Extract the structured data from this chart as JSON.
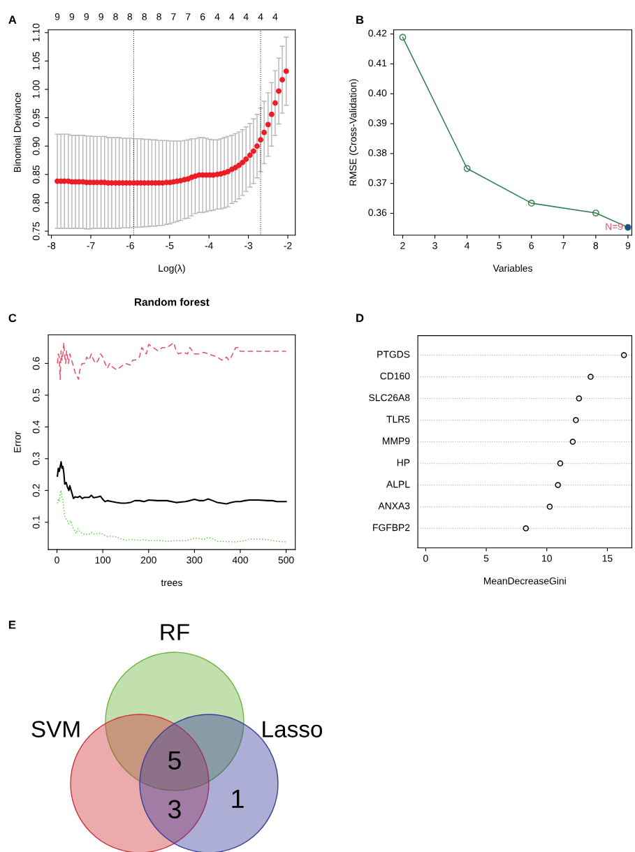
{
  "chart_data": [
    {
      "type": "scatter",
      "xlabel": "Log(λ)",
      "ylabel": "Binomial Deviance",
      "annotations": [
        "A",
        "9",
        "9",
        "9",
        "9",
        "8",
        "8",
        "8",
        "8",
        "7",
        "7",
        "6",
        "4",
        "4",
        "4",
        "4",
        "4"
      ],
      "marker": "circle",
      "xlim": [
        -8.08,
        -1.81
      ],
      "ylim": [
        0.743,
        1.105
      ],
      "xticks": [
        -8,
        -7,
        -6,
        -5,
        -4,
        -3,
        -2
      ],
      "yticks": [
        0.75,
        {
          "value": 0.8,
          "label": "0.80"
        },
        0.85,
        {
          "value": 0.9,
          "label": "0.90"
        },
        0.95,
        {
          "value": 1.0,
          "label": "1.00"
        },
        1.05,
        {
          "value": 1.1,
          "label": "1.10"
        }
      ],
      "ref_lines": [
        {
          "axis": "x",
          "value": -5.91,
          "line_style": "dotted",
          "color": "#333333"
        },
        {
          "axis": "x",
          "value": -2.69,
          "line_style": "dotted",
          "color": "#333333"
        }
      ],
      "x": [
        -7.85,
        -7.76,
        -7.67,
        -7.57,
        -7.48,
        -7.39,
        -7.3,
        -7.2,
        -7.11,
        -7.02,
        -6.93,
        -6.84,
        -6.74,
        -6.65,
        -6.56,
        -6.47,
        -6.37,
        -6.28,
        -6.19,
        -6.1,
        -6.01,
        -5.91,
        -5.82,
        -5.73,
        -5.64,
        -5.54,
        -5.45,
        -5.36,
        -5.27,
        -5.18,
        -5.08,
        -4.99,
        -4.9,
        -4.81,
        -4.72,
        -4.62,
        -4.53,
        -4.44,
        -4.35,
        -4.25,
        -4.16,
        -4.07,
        -3.98,
        -3.89,
        -3.79,
        -3.7,
        -3.61,
        -3.52,
        -3.42,
        -3.33,
        -3.24,
        -3.15,
        -3.06,
        -2.96,
        -2.87,
        -2.78,
        -2.69,
        -2.6,
        -2.5,
        -2.41,
        -2.32,
        -2.23,
        -2.14,
        -2.04
      ],
      "series": [
        {
          "color": "#ee1c25",
          "values": [
            0.838,
            0.838,
            0.838,
            0.838,
            0.837,
            0.837,
            0.837,
            0.837,
            0.836,
            0.836,
            0.836,
            0.836,
            0.836,
            0.836,
            0.835,
            0.835,
            0.835,
            0.835,
            0.835,
            0.835,
            0.835,
            0.835,
            0.835,
            0.835,
            0.835,
            0.835,
            0.835,
            0.835,
            0.835,
            0.835,
            0.836,
            0.836,
            0.837,
            0.838,
            0.839,
            0.841,
            0.842,
            0.845,
            0.847,
            0.849,
            0.849,
            0.849,
            0.849,
            0.849,
            0.85,
            0.851,
            0.853,
            0.855,
            0.859,
            0.862,
            0.866,
            0.871,
            0.877,
            0.884,
            0.891,
            0.9,
            0.911,
            0.924,
            0.938,
            0.956,
            0.976,
            0.997,
            1.017,
            1.032
          ],
          "errors": [
            0.083,
            0.083,
            0.083,
            0.083,
            0.082,
            0.082,
            0.082,
            0.082,
            0.082,
            0.082,
            0.081,
            0.081,
            0.081,
            0.081,
            0.08,
            0.08,
            0.08,
            0.08,
            0.079,
            0.079,
            0.079,
            0.078,
            0.078,
            0.078,
            0.077,
            0.077,
            0.076,
            0.076,
            0.075,
            0.075,
            0.074,
            0.073,
            0.072,
            0.071,
            0.07,
            0.069,
            0.069,
            0.068,
            0.066,
            0.066,
            0.066,
            0.065,
            0.063,
            0.062,
            0.061,
            0.062,
            0.062,
            0.062,
            0.06,
            0.06,
            0.059,
            0.058,
            0.057,
            0.056,
            0.057,
            0.056,
            0.056,
            0.055,
            0.056,
            0.056,
            0.057,
            0.058,
            0.059,
            0.06
          ]
        }
      ]
    },
    {
      "type": "line",
      "xlabel": "Variables",
      "ylabel": "RMSE (Cross-Validation)",
      "marker": "circle",
      "annotations": [
        "B",
        {
          "text": "N=9",
          "x": 9,
          "y": 0.3553
        }
      ],
      "xlim": [
        1.72,
        9.12
      ],
      "ylim": [
        0.3527,
        0.4214
      ],
      "xticks": [
        2,
        3,
        4,
        5,
        6,
        7,
        8,
        9
      ],
      "yticks": [
        0.36,
        0.37,
        0.38,
        0.39,
        {
          "value": 0.4,
          "label": "0.40"
        },
        0.41,
        0.42
      ],
      "series": [
        {
          "color": "#2e7d4f",
          "x": [
            2,
            4,
            6,
            8,
            9
          ],
          "values": [
            0.4189,
            0.375,
            0.3634,
            0.3601,
            0.3553
          ]
        },
        {
          "type": "scatter",
          "color": "#1f4e9c",
          "x": [
            9
          ],
          "values": [
            0.3553
          ]
        }
      ]
    },
    {
      "type": "line",
      "title": "Random forest",
      "xlabel": "trees",
      "ylabel": "Error",
      "annotations": [
        "C"
      ],
      "xlim": [
        -19,
        520
      ],
      "ylim": [
        0.014,
        0.69
      ],
      "xticks": [
        0,
        100,
        200,
        300,
        400,
        500
      ],
      "yticks": [
        0.1,
        0.2,
        0.3,
        0.4,
        0.5,
        0.6
      ],
      "series": [
        {
          "color": "#000000",
          "line_style": "solid",
          "x": [
            1,
            3,
            5,
            7,
            9,
            11,
            13,
            15,
            17,
            20,
            23,
            26,
            28,
            30,
            33,
            36,
            40,
            45,
            50,
            55,
            60,
            70,
            75,
            80,
            90,
            95,
            100,
            105,
            110,
            120,
            130,
            140,
            150,
            160,
            170,
            180,
            190,
            200,
            220,
            240,
            260,
            280,
            290,
            300,
            310,
            320,
            330,
            340,
            350,
            360,
            370,
            380,
            390,
            400,
            410,
            420,
            440,
            460,
            470,
            480,
            490,
            500
          ],
          "values": [
            0.245,
            0.27,
            0.26,
            0.275,
            0.29,
            0.27,
            0.275,
            0.255,
            0.22,
            0.225,
            0.21,
            0.2,
            0.215,
            0.205,
            0.19,
            0.175,
            0.18,
            0.178,
            0.182,
            0.175,
            0.178,
            0.178,
            0.185,
            0.177,
            0.18,
            0.182,
            0.172,
            0.165,
            0.168,
            0.165,
            0.162,
            0.16,
            0.16,
            0.162,
            0.168,
            0.168,
            0.165,
            0.17,
            0.168,
            0.168,
            0.162,
            0.165,
            0.168,
            0.172,
            0.168,
            0.168,
            0.173,
            0.168,
            0.162,
            0.16,
            0.158,
            0.162,
            0.165,
            0.165,
            0.168,
            0.17,
            0.17,
            0.168,
            0.168,
            0.165,
            0.165,
            0.165
          ]
        },
        {
          "color": "#df536b",
          "line_style": "dashed",
          "x": [
            1,
            3,
            5,
            7,
            9,
            11,
            13,
            15,
            17,
            19,
            21,
            25,
            28,
            32,
            36,
            40,
            44,
            47,
            50,
            55,
            60,
            65,
            70,
            75,
            80,
            85,
            90,
            95,
            100,
            105,
            110,
            115,
            120,
            130,
            140,
            150,
            160,
            165,
            170,
            180,
            185,
            190,
            195,
            200,
            210,
            220,
            230,
            240,
            250,
            255,
            260,
            265,
            275,
            285,
            290,
            295,
            300,
            310,
            320,
            330,
            340,
            350,
            360,
            370,
            375,
            380,
            390,
            395,
            400,
            500
          ],
          "values": [
            0.6,
            0.63,
            0.62,
            0.55,
            0.64,
            0.61,
            0.63,
            0.665,
            0.62,
            0.6,
            0.64,
            0.6,
            0.63,
            0.61,
            0.59,
            0.57,
            0.56,
            0.55,
            0.58,
            0.6,
            0.6,
            0.62,
            0.61,
            0.63,
            0.61,
            0.6,
            0.61,
            0.63,
            0.62,
            0.6,
            0.585,
            0.6,
            0.59,
            0.58,
            0.59,
            0.6,
            0.595,
            0.61,
            0.61,
            0.62,
            0.65,
            0.64,
            0.63,
            0.66,
            0.65,
            0.64,
            0.65,
            0.65,
            0.66,
            0.665,
            0.64,
            0.63,
            0.635,
            0.63,
            0.65,
            0.64,
            0.63,
            0.63,
            0.635,
            0.63,
            0.625,
            0.62,
            0.61,
            0.62,
            0.61,
            0.62,
            0.65,
            0.65,
            0.638,
            0.638
          ]
        },
        {
          "color": "#61d04f",
          "line_style": "dotted",
          "x": [
            1,
            3,
            5,
            7,
            9,
            11,
            13,
            15,
            17,
            20,
            23,
            26,
            30,
            34,
            38,
            42,
            46,
            50,
            55,
            60,
            70,
            75,
            80,
            90,
            95,
            100,
            110,
            120,
            130,
            140,
            150,
            160,
            170,
            180,
            190,
            200,
            220,
            240,
            260,
            280,
            290,
            300,
            310,
            320,
            330,
            340,
            350,
            370,
            390,
            410,
            420,
            440,
            460,
            480,
            500
          ],
          "values": [
            0.16,
            0.175,
            0.165,
            0.19,
            0.2,
            0.175,
            0.17,
            0.14,
            0.12,
            0.11,
            0.105,
            0.095,
            0.105,
            0.085,
            0.075,
            0.065,
            0.08,
            0.07,
            0.065,
            0.062,
            0.062,
            0.068,
            0.063,
            0.064,
            0.066,
            0.062,
            0.055,
            0.056,
            0.053,
            0.048,
            0.043,
            0.046,
            0.044,
            0.043,
            0.045,
            0.042,
            0.043,
            0.04,
            0.042,
            0.042,
            0.045,
            0.05,
            0.048,
            0.046,
            0.052,
            0.048,
            0.04,
            0.039,
            0.038,
            0.042,
            0.047,
            0.047,
            0.045,
            0.04,
            0.038
          ]
        }
      ]
    },
    {
      "type": "scatter",
      "orientation": "horizontal",
      "xlabel": "MeanDecreaseGini",
      "annotations": [
        "D"
      ],
      "marker": "circle",
      "grid": "y",
      "categories": [
        "PTGDS",
        "CD160",
        "SLC26A8",
        "TLR5",
        "MMP9",
        "HP",
        "ALPL",
        "ANXA3",
        "FGFBP2"
      ],
      "xlim": [
        -0.65,
        17.02
      ],
      "xticks": [
        0,
        5,
        10,
        15
      ],
      "series": [
        {
          "color": "#000000",
          "values": [
            16.37,
            13.62,
            12.66,
            12.4,
            12.14,
            11.11,
            10.92,
            10.24,
            8.27
          ]
        }
      ]
    },
    {
      "type": "other",
      "categories": [
        "RF",
        "SVM",
        "Lasso"
      ],
      "colors": [
        "#6db33f",
        "#d0343a",
        "#3b3f9c"
      ],
      "annotations": [
        "E",
        "5",
        "3",
        "1"
      ]
    }
  ]
}
